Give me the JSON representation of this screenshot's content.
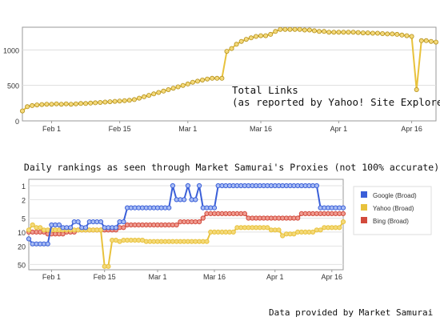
{
  "chart_data": [
    {
      "type": "line",
      "title": "",
      "annotation": [
        "Total Links",
        "(as reported by Yahoo! Site Explorer)"
      ],
      "xlabel": "",
      "ylabel": "",
      "x_ticks": [
        "Feb 1",
        "Feb 15",
        "Mar 1",
        "Mar 16",
        "Apr 1",
        "Apr 16"
      ],
      "x_tick_dates": [
        "2009-02-01",
        "2009-02-15",
        "2009-03-01",
        "2009-03-16",
        "2009-04-01",
        "2009-04-16"
      ],
      "x_range": [
        "2009-01-26",
        "2009-04-21"
      ],
      "y_ticks": [
        0,
        500,
        1000
      ],
      "ylim": [
        0,
        1320
      ],
      "grid": "horizontal",
      "series": [
        {
          "name": "",
          "color": "#e8c23c",
          "x": [
            "2009-01-26",
            "2009-01-27",
            "2009-01-28",
            "2009-01-29",
            "2009-01-30",
            "2009-01-31",
            "2009-02-01",
            "2009-02-02",
            "2009-02-03",
            "2009-02-04",
            "2009-02-05",
            "2009-02-06",
            "2009-02-07",
            "2009-02-08",
            "2009-02-09",
            "2009-02-10",
            "2009-02-11",
            "2009-02-12",
            "2009-02-13",
            "2009-02-14",
            "2009-02-15",
            "2009-02-16",
            "2009-02-17",
            "2009-02-18",
            "2009-02-19",
            "2009-02-20",
            "2009-02-21",
            "2009-02-22",
            "2009-02-23",
            "2009-02-24",
            "2009-02-25",
            "2009-02-26",
            "2009-02-27",
            "2009-02-28",
            "2009-03-01",
            "2009-03-02",
            "2009-03-03",
            "2009-03-04",
            "2009-03-05",
            "2009-03-06",
            "2009-03-07",
            "2009-03-08",
            "2009-03-09",
            "2009-03-10",
            "2009-03-11",
            "2009-03-12",
            "2009-03-13",
            "2009-03-14",
            "2009-03-15",
            "2009-03-16",
            "2009-03-17",
            "2009-03-18",
            "2009-03-19",
            "2009-03-20",
            "2009-03-21",
            "2009-03-22",
            "2009-03-23",
            "2009-03-24",
            "2009-03-25",
            "2009-03-26",
            "2009-03-27",
            "2009-03-28",
            "2009-03-29",
            "2009-03-30",
            "2009-03-31",
            "2009-04-01",
            "2009-04-02",
            "2009-04-03",
            "2009-04-04",
            "2009-04-05",
            "2009-04-06",
            "2009-04-07",
            "2009-04-08",
            "2009-04-09",
            "2009-04-10",
            "2009-04-11",
            "2009-04-12",
            "2009-04-13",
            "2009-04-14",
            "2009-04-15",
            "2009-04-16",
            "2009-04-17",
            "2009-04-18",
            "2009-04-19",
            "2009-04-20",
            "2009-04-21"
          ],
          "values": [
            140,
            200,
            215,
            225,
            230,
            235,
            235,
            240,
            235,
            240,
            235,
            240,
            245,
            245,
            250,
            255,
            260,
            265,
            270,
            275,
            280,
            285,
            290,
            300,
            320,
            340,
            360,
            380,
            400,
            420,
            440,
            460,
            480,
            500,
            520,
            545,
            560,
            575,
            590,
            600,
            600,
            600,
            980,
            1020,
            1080,
            1120,
            1150,
            1170,
            1190,
            1200,
            1200,
            1220,
            1260,
            1290,
            1290,
            1290,
            1290,
            1290,
            1280,
            1280,
            1270,
            1260,
            1260,
            1250,
            1250,
            1250,
            1250,
            1250,
            1250,
            1245,
            1240,
            1240,
            1235,
            1235,
            1230,
            1225,
            1225,
            1220,
            1210,
            1200,
            1190,
            440,
            1130,
            1130,
            1120,
            1110
          ]
        }
      ]
    },
    {
      "type": "line",
      "title": "Daily rankings as seen through Market Samurai's Proxies (not 100% accurate).",
      "xlabel": "",
      "ylabel": "",
      "y_scale": "log",
      "y_inverted": true,
      "y_ticks": [
        1,
        2,
        5,
        10,
        20,
        50
      ],
      "ylim": [
        1,
        60
      ],
      "x_ticks": [
        "Feb 1",
        "Feb 15",
        "Mar 1",
        "Mar 16",
        "Apr 1",
        "Apr 16"
      ],
      "x_tick_dates": [
        "2009-02-01",
        "2009-02-15",
        "2009-03-01",
        "2009-03-16",
        "2009-04-01",
        "2009-04-16"
      ],
      "x_range": [
        "2009-01-26",
        "2009-04-19"
      ],
      "grid": "horizontal",
      "legend_position": "right",
      "series": [
        {
          "name": "Google (Broad)",
          "color": "#3a5fd8",
          "x": [
            "2009-01-26",
            "2009-01-27",
            "2009-01-28",
            "2009-01-29",
            "2009-01-30",
            "2009-01-31",
            "2009-02-01",
            "2009-02-02",
            "2009-02-03",
            "2009-02-04",
            "2009-02-05",
            "2009-02-06",
            "2009-02-07",
            "2009-02-08",
            "2009-02-09",
            "2009-02-10",
            "2009-02-11",
            "2009-02-12",
            "2009-02-13",
            "2009-02-14",
            "2009-02-15",
            "2009-02-16",
            "2009-02-17",
            "2009-02-18",
            "2009-02-19",
            "2009-02-20",
            "2009-02-21",
            "2009-02-22",
            "2009-02-23",
            "2009-02-24",
            "2009-02-25",
            "2009-02-26",
            "2009-02-27",
            "2009-02-28",
            "2009-03-01",
            "2009-03-02",
            "2009-03-03",
            "2009-03-04",
            "2009-03-05",
            "2009-03-06",
            "2009-03-07",
            "2009-03-08",
            "2009-03-09",
            "2009-03-10",
            "2009-03-11",
            "2009-03-12",
            "2009-03-13",
            "2009-03-14",
            "2009-03-15",
            "2009-03-16",
            "2009-03-17",
            "2009-03-18",
            "2009-03-19",
            "2009-03-20",
            "2009-03-21",
            "2009-03-22",
            "2009-03-23",
            "2009-03-24",
            "2009-03-25",
            "2009-03-26",
            "2009-03-27",
            "2009-03-28",
            "2009-03-29",
            "2009-03-30",
            "2009-03-31",
            "2009-04-01",
            "2009-04-02",
            "2009-04-03",
            "2009-04-04",
            "2009-04-05",
            "2009-04-06",
            "2009-04-07",
            "2009-04-08",
            "2009-04-09",
            "2009-04-10",
            "2009-04-11",
            "2009-04-12",
            "2009-04-13",
            "2009-04-14",
            "2009-04-15",
            "2009-04-16",
            "2009-04-17",
            "2009-04-18",
            "2009-04-19"
          ],
          "values": [
            14,
            18,
            18,
            18,
            18,
            18,
            7,
            7,
            7,
            8,
            8,
            8,
            6,
            6,
            8,
            8,
            6,
            6,
            6,
            6,
            8,
            8,
            8,
            8,
            6,
            6,
            3,
            3,
            3,
            3,
            3,
            3,
            3,
            3,
            3,
            3,
            3,
            3,
            1,
            2,
            2,
            2,
            1,
            2,
            2,
            1,
            3,
            3,
            3,
            3,
            1,
            1,
            1,
            1,
            1,
            1,
            1,
            1,
            1,
            1,
            1,
            1,
            1,
            1,
            1,
            1,
            1,
            1,
            1,
            1,
            1,
            1,
            1,
            1,
            1,
            1,
            1,
            3,
            3,
            3,
            3,
            3,
            3,
            3
          ]
        },
        {
          "name": "Yahoo (Broad)",
          "color": "#e8c23c",
          "x": [
            "2009-01-26",
            "2009-01-27",
            "2009-01-28",
            "2009-01-29",
            "2009-01-30",
            "2009-01-31",
            "2009-02-01",
            "2009-02-02",
            "2009-02-03",
            "2009-02-04",
            "2009-02-05",
            "2009-02-06",
            "2009-02-07",
            "2009-02-08",
            "2009-02-09",
            "2009-02-10",
            "2009-02-11",
            "2009-02-12",
            "2009-02-13",
            "2009-02-14",
            "2009-02-15",
            "2009-02-16",
            "2009-02-17",
            "2009-02-18",
            "2009-02-19",
            "2009-02-20",
            "2009-02-21",
            "2009-02-22",
            "2009-02-23",
            "2009-02-24",
            "2009-02-25",
            "2009-02-26",
            "2009-02-27",
            "2009-02-28",
            "2009-03-01",
            "2009-03-02",
            "2009-03-03",
            "2009-03-04",
            "2009-03-05",
            "2009-03-06",
            "2009-03-07",
            "2009-03-08",
            "2009-03-09",
            "2009-03-10",
            "2009-03-11",
            "2009-03-12",
            "2009-03-13",
            "2009-03-14",
            "2009-03-15",
            "2009-03-16",
            "2009-03-17",
            "2009-03-18",
            "2009-03-19",
            "2009-03-20",
            "2009-03-21",
            "2009-03-22",
            "2009-03-23",
            "2009-03-24",
            "2009-03-25",
            "2009-03-26",
            "2009-03-27",
            "2009-03-28",
            "2009-03-29",
            "2009-03-30",
            "2009-03-31",
            "2009-04-01",
            "2009-04-02",
            "2009-04-03",
            "2009-04-04",
            "2009-04-05",
            "2009-04-06",
            "2009-04-07",
            "2009-04-08",
            "2009-04-09",
            "2009-04-10",
            "2009-04-11",
            "2009-04-12",
            "2009-04-13",
            "2009-04-14",
            "2009-04-15",
            "2009-04-16",
            "2009-04-17",
            "2009-04-18",
            "2009-04-19"
          ],
          "values": [
            9,
            7,
            8,
            8,
            9,
            9,
            9,
            9,
            9,
            9,
            9,
            9,
            9,
            9,
            9,
            9,
            9,
            9,
            9,
            9,
            55,
            55,
            15,
            15,
            16,
            15,
            15,
            15,
            15,
            15,
            15,
            16,
            16,
            16,
            16,
            16,
            16,
            16,
            16,
            16,
            16,
            16,
            16,
            16,
            16,
            16,
            16,
            16,
            10,
            10,
            10,
            10,
            10,
            10,
            10,
            8,
            8,
            8,
            8,
            8,
            8,
            8,
            8,
            8,
            9,
            9,
            9,
            12,
            11,
            11,
            11,
            10,
            10,
            10,
            10,
            10,
            9,
            9,
            8,
            8,
            8,
            8,
            8,
            6
          ]
        },
        {
          "name": "Bing (Broad)",
          "color": "#d24a3c",
          "x": [
            "2009-01-26",
            "2009-01-27",
            "2009-01-28",
            "2009-01-29",
            "2009-01-30",
            "2009-01-31",
            "2009-02-01",
            "2009-02-02",
            "2009-02-03",
            "2009-02-04",
            "2009-02-05",
            "2009-02-06",
            "2009-02-07",
            "2009-02-08",
            "2009-02-09",
            "2009-02-10",
            "2009-02-11",
            "2009-02-12",
            "2009-02-13",
            "2009-02-14",
            "2009-02-15",
            "2009-02-16",
            "2009-02-17",
            "2009-02-18",
            "2009-02-19",
            "2009-02-20",
            "2009-02-21",
            "2009-02-22",
            "2009-02-23",
            "2009-02-24",
            "2009-02-25",
            "2009-02-26",
            "2009-02-27",
            "2009-02-28",
            "2009-03-01",
            "2009-03-02",
            "2009-03-03",
            "2009-03-04",
            "2009-03-05",
            "2009-03-06",
            "2009-03-07",
            "2009-03-08",
            "2009-03-09",
            "2009-03-10",
            "2009-03-11",
            "2009-03-12",
            "2009-03-13",
            "2009-03-14",
            "2009-03-15",
            "2009-03-16",
            "2009-03-17",
            "2009-03-18",
            "2009-03-19",
            "2009-03-20",
            "2009-03-21",
            "2009-03-22",
            "2009-03-23",
            "2009-03-24",
            "2009-03-25",
            "2009-03-26",
            "2009-03-27",
            "2009-03-28",
            "2009-03-29",
            "2009-03-30",
            "2009-03-31",
            "2009-04-01",
            "2009-04-02",
            "2009-04-03",
            "2009-04-04",
            "2009-04-05",
            "2009-04-06",
            "2009-04-07",
            "2009-04-08",
            "2009-04-09",
            "2009-04-10",
            "2009-04-11",
            "2009-04-12",
            "2009-04-13",
            "2009-04-14",
            "2009-04-15",
            "2009-04-16",
            "2009-04-17",
            "2009-04-18",
            "2009-04-19"
          ],
          "values": [
            10,
            10,
            10,
            10,
            10,
            11,
            11,
            11,
            11,
            11,
            10,
            10,
            10,
            9,
            9,
            9,
            9,
            9,
            9,
            9,
            9,
            9,
            9,
            9,
            8,
            8,
            7,
            7,
            7,
            7,
            7,
            7,
            7,
            7,
            7,
            7,
            7,
            7,
            7,
            7,
            6,
            6,
            6,
            6,
            6,
            6,
            5,
            4,
            4,
            4,
            4,
            4,
            4,
            4,
            4,
            4,
            4,
            4,
            5,
            5,
            5,
            5,
            5,
            5,
            5,
            5,
            5,
            5,
            5,
            5,
            5,
            5,
            4,
            4,
            4,
            4,
            4,
            4,
            4,
            4,
            4,
            4,
            4,
            4
          ]
        }
      ]
    }
  ],
  "footer": "Data provided by Market Samurai"
}
